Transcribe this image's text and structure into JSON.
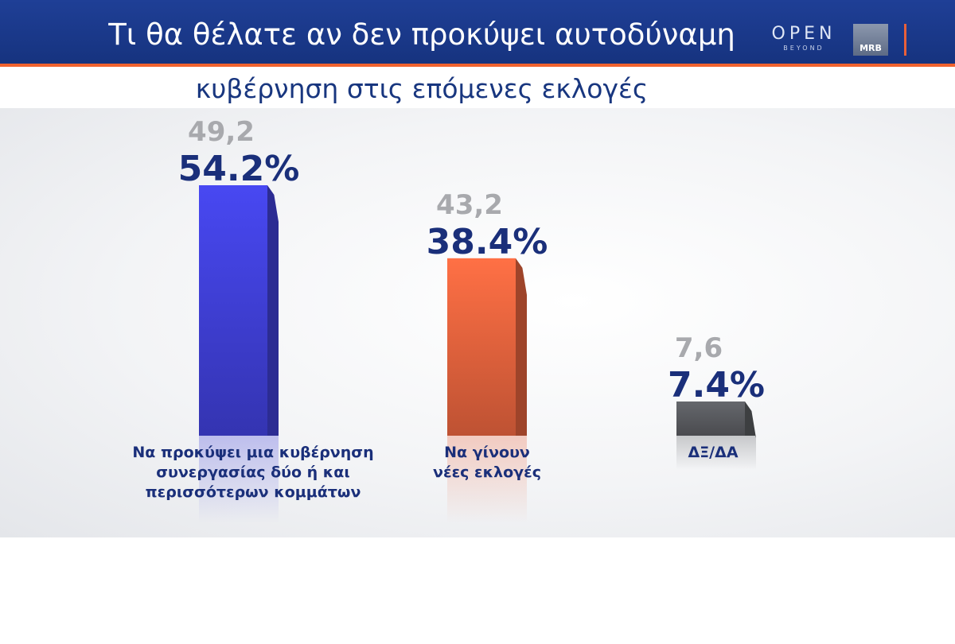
{
  "header": {
    "title_line1": "Τι θα θέλατε αν δεν προκύψει αυτοδύναμη",
    "title_line2": "κυβέρνηση στις επόμενες  εκλογές",
    "logo_open": "OPEN",
    "logo_beyond": "BEYOND",
    "logo_mrb": "MRB"
  },
  "chart_data": {
    "type": "bar",
    "title": "Τι θα θέλατε αν δεν προκύψει αυτοδύναμη κυβέρνηση στις επόμενες  εκλογές",
    "categories": [
      [
        "Να προκύψει μια κυβέρνηση",
        "συνεργασίας δύο ή και",
        "περισσότερων κομμάτων"
      ],
      [
        "Να γίνουν",
        "νέες εκλογές"
      ],
      [
        "ΔΞ/ΔΑ"
      ]
    ],
    "series": [
      {
        "values": [
          54.2,
          38.4,
          7.4
        ],
        "value_labels": [
          "54.2%",
          "38.4%",
          "7.4%"
        ]
      },
      {
        "values": [
          49.2,
          43.2,
          7.6
        ],
        "value_labels": [
          "49,2",
          "43,2",
          "7,6"
        ]
      }
    ],
    "colors": [
      "#4040d8",
      "#e8643e",
      "#5a5c60"
    ],
    "value_label_color": "#1a2f7a",
    "previous_label_color": "#a8a9ad",
    "ylim": [
      0,
      54.2
    ],
    "grid": false,
    "legend": "none"
  }
}
